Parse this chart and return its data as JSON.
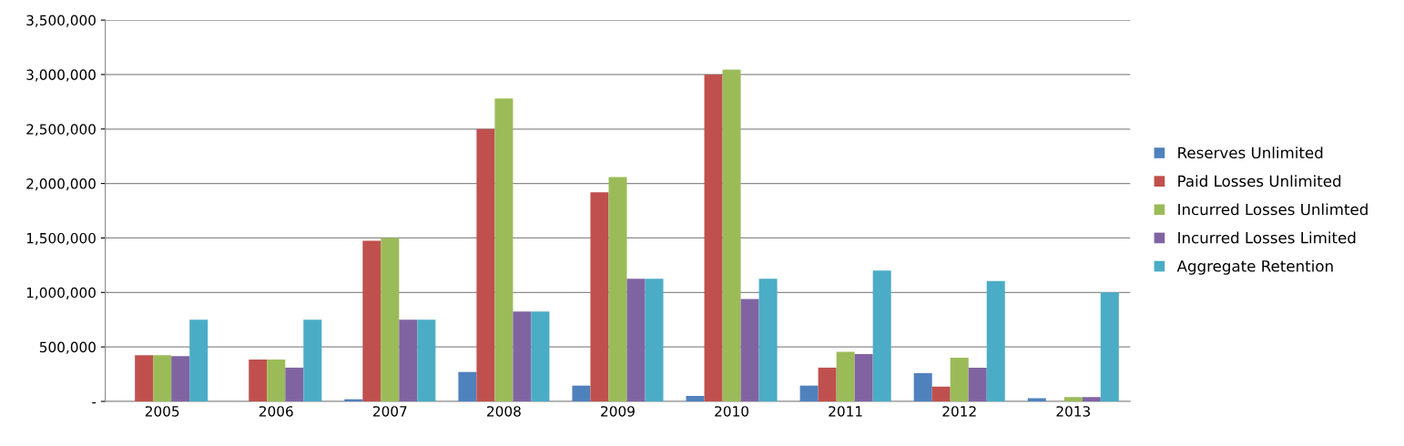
{
  "chart_data": {
    "type": "bar",
    "categories": [
      "2005",
      "2006",
      "2007",
      "2008",
      "2009",
      "2010",
      "2011",
      "2012",
      "2013"
    ],
    "series": [
      {
        "name": "Reserves Unlimited",
        "color": "#4f81bd",
        "values": [
          0,
          0,
          20000,
          270000,
          145000,
          50000,
          145000,
          260000,
          30000
        ]
      },
      {
        "name": "Paid Losses Unlimited",
        "color": "#c0504d",
        "values": [
          425000,
          385000,
          1475000,
          2500000,
          1920000,
          3000000,
          310000,
          135000,
          0
        ]
      },
      {
        "name": "Incurred Losses Unlimted",
        "color": "#9bbb59",
        "values": [
          425000,
          385000,
          1500000,
          2780000,
          2060000,
          3045000,
          455000,
          400000,
          40000
        ]
      },
      {
        "name": "Incurred Losses Limited",
        "color": "#8064a2",
        "values": [
          415000,
          310000,
          750000,
          825000,
          1125000,
          940000,
          435000,
          310000,
          40000
        ]
      },
      {
        "name": "Aggregate Retention",
        "color": "#4bacc6",
        "values": [
          750000,
          750000,
          750000,
          825000,
          1125000,
          1125000,
          1200000,
          1105000,
          1000000
        ]
      }
    ],
    "ylim": [
      0,
      3500000
    ],
    "yticks": [
      {
        "value": 0,
        "label": "-"
      },
      {
        "value": 500000,
        "label": "500,000"
      },
      {
        "value": 1000000,
        "label": "1,000,000"
      },
      {
        "value": 1500000,
        "label": "1,500,000"
      },
      {
        "value": 2000000,
        "label": "2,000,000"
      },
      {
        "value": 2500000,
        "label": "2,500,000"
      },
      {
        "value": 3000000,
        "label": "3,000,000"
      },
      {
        "value": 3500000,
        "label": "3,500,000"
      }
    ],
    "grid": "y",
    "legend": "right"
  }
}
